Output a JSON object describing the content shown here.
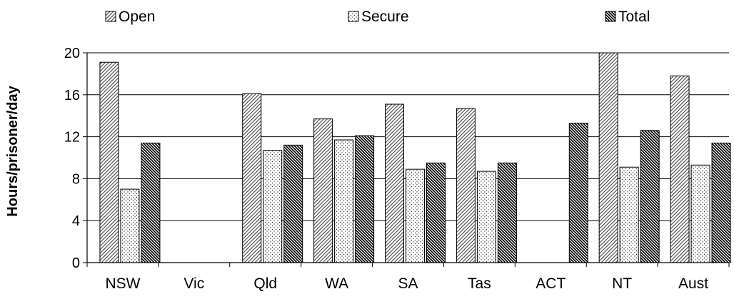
{
  "chart_data": {
    "type": "bar",
    "categories": [
      "NSW",
      "Vic",
      "Qld",
      "WA",
      "SA",
      "Tas",
      "ACT",
      "NT",
      "Aust"
    ],
    "series": [
      {
        "name": "Open",
        "values": [
          19.1,
          null,
          16.1,
          13.7,
          15.1,
          14.7,
          null,
          20.0,
          17.8
        ],
        "pattern": "diag-right"
      },
      {
        "name": "Secure",
        "values": [
          7.0,
          null,
          10.7,
          11.7,
          8.9,
          8.7,
          null,
          9.1,
          9.3
        ],
        "pattern": "dots"
      },
      {
        "name": "Total",
        "values": [
          11.4,
          null,
          11.2,
          12.1,
          9.5,
          9.5,
          13.3,
          12.6,
          11.4
        ],
        "pattern": "diag-left"
      }
    ],
    "ylabel": "Hours/prisoner/day",
    "ylim": [
      0,
      20
    ],
    "yticks": [
      0,
      4,
      8,
      12,
      16,
      20
    ],
    "grid": true,
    "legend_position": "top"
  }
}
